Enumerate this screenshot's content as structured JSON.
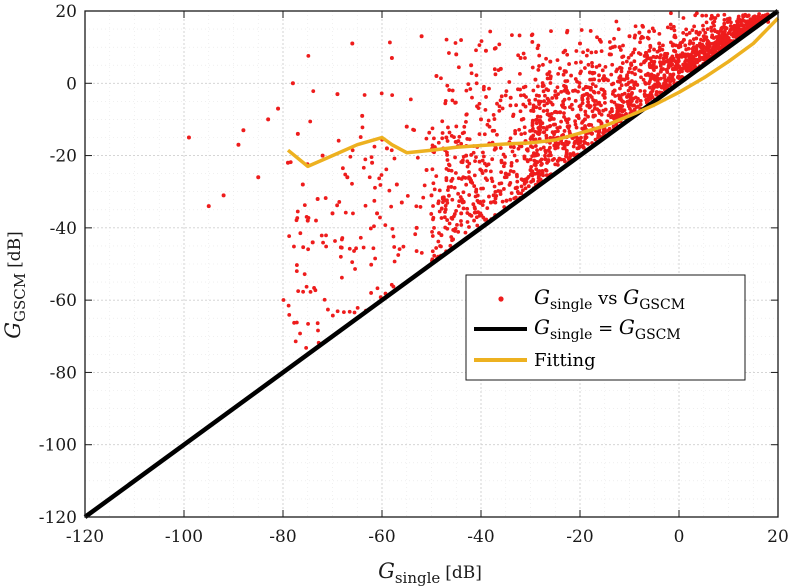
{
  "chart_data": {
    "type": "scatter",
    "title": "",
    "xlabel": {
      "main": "G",
      "sub": "single",
      "unit": "[dB]"
    },
    "ylabel": {
      "main": "G",
      "sub": "GSCM",
      "unit": "[dB]"
    },
    "xlim": [
      -120,
      20
    ],
    "ylim": [
      -120,
      20
    ],
    "x_ticks": [
      -120,
      -100,
      -80,
      -60,
      -40,
      -20,
      0,
      20
    ],
    "y_ticks": [
      -120,
      -100,
      -80,
      -60,
      -40,
      -20,
      0,
      20
    ],
    "x_tick_labels": [
      "-120",
      "-100",
      "-80",
      "-60",
      "-40",
      "-20",
      "0",
      "20"
    ],
    "y_tick_labels": [
      "-120",
      "-100",
      "-80",
      "-60",
      "-40",
      "-20",
      "0",
      "20"
    ],
    "grid": true,
    "legend_position": "middle-right",
    "series": [
      {
        "name": "G_single vs G_GSCM",
        "kind": "scatter",
        "color": "#ee1c1c",
        "scatter_description": "dense cloud of several thousand points above the identity line, concentrated between -30 and 20 dB on the x-axis",
        "sample_points": [
          [
            -99,
            -15
          ],
          [
            -95,
            -34
          ],
          [
            -92,
            -31
          ],
          [
            -89,
            -17
          ],
          [
            -88,
            -13
          ],
          [
            -85,
            -26
          ],
          [
            -83,
            -10
          ],
          [
            -81,
            -7
          ],
          [
            -79,
            -22
          ],
          [
            -78,
            0
          ],
          [
            -77,
            -14
          ],
          [
            -76,
            -28
          ],
          [
            -75,
            -38
          ],
          [
            -74,
            -44
          ],
          [
            -73,
            -32
          ],
          [
            -72,
            -20
          ],
          [
            -70,
            -36
          ],
          [
            -69,
            -3
          ],
          [
            -67,
            -26
          ],
          [
            -66,
            11
          ],
          [
            -64,
            -9
          ],
          [
            -62,
            -22
          ],
          [
            -61,
            -36
          ],
          [
            -59,
            -18
          ],
          [
            -58,
            7
          ],
          [
            -57,
            -28
          ],
          [
            -56,
            -33
          ],
          [
            -55,
            -12
          ],
          [
            -53,
            -40
          ],
          [
            -52,
            13
          ],
          [
            -51,
            -24
          ],
          [
            -50,
            -31
          ],
          [
            -49,
            2
          ],
          [
            -48,
            -42
          ],
          [
            -47,
            -15
          ],
          [
            -46,
            -27
          ],
          [
            -45,
            8
          ],
          [
            -44,
            -36
          ],
          [
            -43,
            -20
          ],
          [
            -42,
            5
          ],
          [
            -41,
            -30
          ],
          [
            -40,
            -10
          ],
          [
            -39,
            9
          ],
          [
            -38,
            -33
          ],
          [
            -37,
            -18
          ],
          [
            -36,
            4
          ],
          [
            -35,
            -25
          ],
          [
            -34,
            -4
          ],
          [
            -33,
            -29
          ],
          [
            -32,
            7
          ],
          [
            -31,
            -16
          ],
          [
            -30,
            -24
          ],
          [
            -29,
            1
          ],
          [
            -28,
            -12
          ],
          [
            -27,
            -21
          ],
          [
            -26,
            6
          ],
          [
            -25,
            -18
          ],
          [
            -24,
            -8
          ],
          [
            -23,
            9
          ],
          [
            -22,
            -14
          ],
          [
            -21,
            -2
          ],
          [
            -20,
            11
          ],
          [
            -19,
            -10
          ],
          [
            -18,
            3
          ],
          [
            -17,
            -6
          ],
          [
            -16,
            12
          ],
          [
            -15,
            -4
          ],
          [
            -14,
            8
          ],
          [
            -13,
            -2
          ],
          [
            -12,
            10
          ],
          [
            -11,
            1
          ],
          [
            -10,
            13
          ],
          [
            -9,
            4
          ],
          [
            -8,
            14
          ],
          [
            -7,
            6
          ],
          [
            -6,
            9
          ],
          [
            -5,
            2
          ],
          [
            -4,
            11
          ],
          [
            -3,
            7
          ],
          [
            -2,
            5
          ],
          [
            -1,
            9
          ],
          [
            0,
            3
          ],
          [
            1,
            12
          ],
          [
            2,
            6
          ],
          [
            3,
            10
          ],
          [
            4,
            8
          ],
          [
            5,
            13
          ],
          [
            6,
            9
          ],
          [
            7,
            11
          ],
          [
            8,
            12
          ],
          [
            9,
            14
          ],
          [
            10,
            11
          ],
          [
            11,
            13
          ],
          [
            12,
            14
          ],
          [
            13,
            15
          ],
          [
            14,
            16
          ],
          [
            15,
            15
          ],
          [
            16,
            17
          ],
          [
            17,
            18
          ],
          [
            18,
            17
          ],
          [
            19,
            19
          ]
        ]
      },
      {
        "name": "G_single = G_GSCM",
        "kind": "line",
        "color": "#000000",
        "x": [
          -120,
          20
        ],
        "y": [
          -120,
          20
        ]
      },
      {
        "name": "Fitting",
        "kind": "line",
        "color": "#edb120",
        "x": [
          -79,
          -75,
          -70,
          -65,
          -60,
          -58,
          -55,
          -50,
          -45,
          -40,
          -35,
          -30,
          -25,
          -20,
          -15,
          -10,
          -5,
          0,
          5,
          10,
          15,
          20
        ],
        "y": [
          -18.5,
          -23,
          -20,
          -17,
          -15,
          -17,
          -19.2,
          -18.5,
          -17.7,
          -17.2,
          -16.8,
          -16.5,
          -15.7,
          -13.8,
          -11.8,
          -9,
          -6,
          -2.5,
          1.5,
          6,
          11,
          18
        ]
      }
    ],
    "legend": [
      {
        "main": "G",
        "sub": "single",
        "mid": " vs ",
        "main2": "G",
        "sub2": "GSCM",
        "marker": "dot",
        "color": "#ee1c1c"
      },
      {
        "main": "G",
        "sub": "single",
        "mid": " = ",
        "main2": "G",
        "sub2": "GSCM",
        "marker": "line",
        "color": "#000000"
      },
      {
        "text": "Fitting",
        "marker": "line",
        "color": "#edb120"
      }
    ]
  }
}
